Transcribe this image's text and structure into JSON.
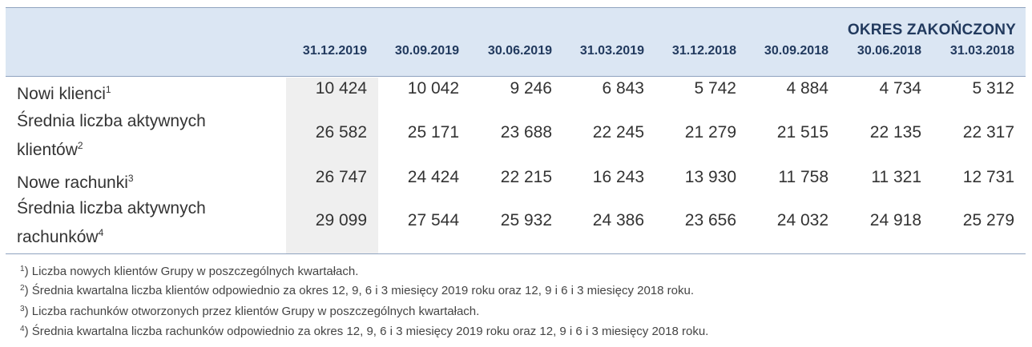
{
  "period_heading": "OKRES ZAKOŃCZONY",
  "columns": [
    "31.12.2019",
    "30.09.2019",
    "30.06.2019",
    "31.03.2019",
    "31.12.2018",
    "30.09.2018",
    "30.06.2018",
    "31.03.2018"
  ],
  "rows": [
    {
      "label_lines": [
        "Nowi klienci"
      ],
      "note": "1",
      "values": [
        "10 424",
        "10 042",
        "9 246",
        "6 843",
        "5 742",
        "4 884",
        "4 734",
        "5 312"
      ]
    },
    {
      "label_lines": [
        "Średnia liczba aktywnych",
        "klientów"
      ],
      "note": "2",
      "values": [
        "26 582",
        "25 171",
        "23 688",
        "22 245",
        "21 279",
        "21 515",
        "22 135",
        "22 317"
      ]
    },
    {
      "label_lines": [
        "Nowe rachunki"
      ],
      "note": "3",
      "values": [
        "26 747",
        "24 424",
        "22 215",
        "16 243",
        "13 930",
        "11 758",
        "11 321",
        "12 731"
      ]
    },
    {
      "label_lines": [
        "Średnia liczba aktywnych",
        "rachunków"
      ],
      "note": "4",
      "values": [
        "29 099",
        "27 544",
        "25 932",
        "24 386",
        "23 656",
        "24 032",
        "24 918",
        "25 279"
      ]
    }
  ],
  "footnotes": [
    {
      "mark": "1",
      "text": ") Liczba nowych klientów Grupy w poszczególnych kwartałach."
    },
    {
      "mark": "2",
      "text": ") Średnia kwartalna liczba klientów odpowiednio za okres 12, 9, 6 i 3 miesięcy 2019 roku oraz 12, 9 i 6 i 3 miesięcy 2018 roku."
    },
    {
      "mark": "3",
      "text": ") Liczba rachunków otworzonych przez klientów Grupy w poszczególnych kwartałach."
    },
    {
      "mark": "4",
      "text": ") Średnia kwartalna liczba rachunków odpowiednio za okres 12, 9, 6 i 3 miesięcy 2019 roku oraz 12, 9 i 6 i 3 miesięcy 2018 roku."
    }
  ]
}
